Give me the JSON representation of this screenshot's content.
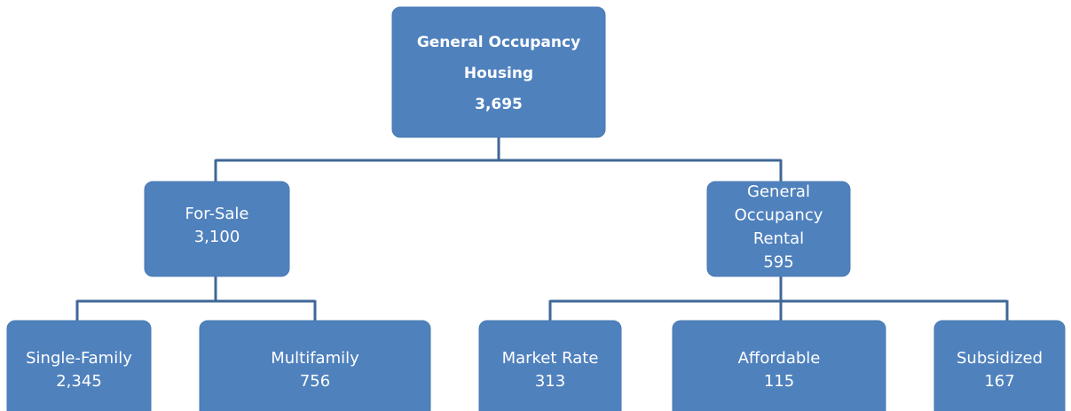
{
  "nodes": [
    {
      "lines": [
        "General Occupancy",
        "Housing",
        "3,695"
      ]
    },
    {
      "lines": [
        "For-Sale",
        "3,100"
      ]
    },
    {
      "lines": [
        "General",
        "Occupancy",
        "Rental",
        "595"
      ]
    },
    {
      "lines": [
        "Single-Family",
        "2,345"
      ]
    },
    {
      "lines": [
        "Multifamily",
        "756"
      ]
    },
    {
      "lines": [
        "Market Rate",
        "313"
      ]
    },
    {
      "lines": [
        "Affordable",
        "115"
      ]
    },
    {
      "lines": [
        "Subsidized",
        "167"
      ]
    }
  ]
}
